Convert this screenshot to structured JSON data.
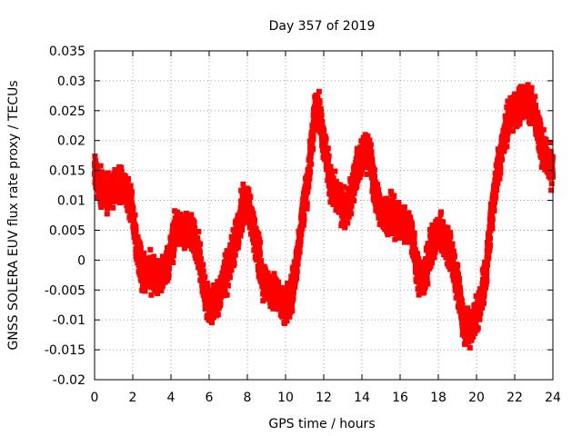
{
  "chart_data": {
    "type": "scatter",
    "title": "Day 357 of 2019",
    "xlabel": "GPS time / hours",
    "ylabel": "GNSS SOLERA EUV flux rate proxy / TECUs",
    "xlim": [
      0,
      24
    ],
    "ylim": [
      -0.02,
      0.035
    ],
    "xticks": [
      "0",
      "2",
      "4",
      "6",
      "8",
      "10",
      "12",
      "14",
      "16",
      "18",
      "20",
      "22",
      "24"
    ],
    "yticks": [
      "-0.02",
      "-0.015",
      "-0.01",
      "-0.005",
      "0",
      "0.005",
      "0.01",
      "0.015",
      "0.02",
      "0.025",
      "0.03",
      "0.035"
    ],
    "grid": true,
    "marker": "square",
    "color": "#ff0000",
    "trend_anchors": {
      "x": [
        0,
        0.3,
        0.8,
        1.2,
        1.6,
        1.9,
        2.2,
        2.6,
        3.0,
        3.5,
        3.9,
        4.3,
        4.6,
        5.0,
        5.4,
        5.8,
        6.1,
        6.5,
        6.9,
        7.3,
        7.7,
        8.0,
        8.4,
        8.8,
        9.2,
        9.6,
        10.0,
        10.3,
        10.6,
        10.9,
        11.2,
        11.5,
        11.7,
        12.0,
        12.4,
        12.8,
        13.2,
        13.5,
        13.8,
        14.1,
        14.4,
        14.7,
        15.0,
        15.4,
        15.8,
        16.2,
        16.6,
        16.9,
        17.2,
        17.6,
        18.0,
        18.4,
        18.7,
        19.0,
        19.3,
        19.6,
        19.9,
        20.2,
        20.5,
        20.8,
        21.1,
        21.4,
        21.7,
        22.0,
        22.3,
        22.6,
        22.9,
        23.2,
        23.5,
        23.8,
        24.0
      ],
      "y": [
        0.015,
        0.012,
        0.011,
        0.013,
        0.012,
        0.01,
        0.002,
        -0.003,
        -0.002,
        -0.003,
        0.0,
        0.006,
        0.005,
        0.005,
        0.002,
        -0.006,
        -0.008,
        -0.006,
        -0.002,
        0.002,
        0.008,
        0.01,
        0.004,
        -0.003,
        -0.005,
        -0.006,
        -0.008,
        -0.006,
        0.0,
        0.008,
        0.014,
        0.024,
        0.026,
        0.02,
        0.012,
        0.01,
        0.008,
        0.012,
        0.016,
        0.018,
        0.018,
        0.011,
        0.008,
        0.008,
        0.007,
        0.006,
        0.005,
        -0.002,
        -0.004,
        0.002,
        0.005,
        0.003,
        0.001,
        -0.004,
        -0.01,
        -0.012,
        -0.01,
        -0.007,
        -0.002,
        0.008,
        0.015,
        0.02,
        0.024,
        0.025,
        0.026,
        0.027,
        0.026,
        0.022,
        0.018,
        0.016,
        0.015
      ]
    },
    "noise_amplitude": 0.002,
    "points_per_hour": 250
  }
}
